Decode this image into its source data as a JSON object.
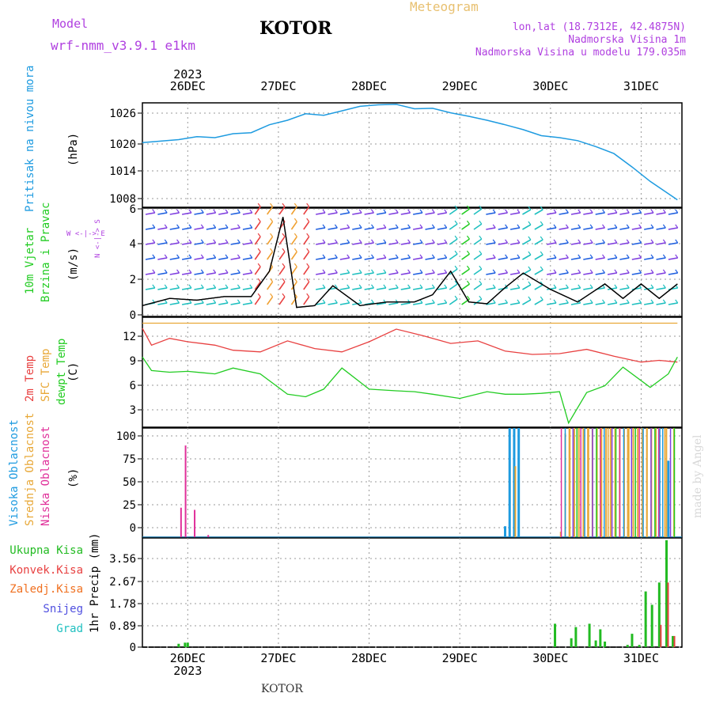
{
  "header": {
    "model_label": "Model",
    "model_name": "wrf-nmm_v3.9.1  e1km",
    "station": "KOTOR",
    "meteogram": "Meteogram",
    "lonlat": "lon,lat (18.7312E, 42.4875N)",
    "elevation": "Nadmorska Visina 1m",
    "model_elevation": "Nadmorska Visina u modelu 179.035m",
    "footer_station": "KOTOR",
    "credit": "made by Angel"
  },
  "colors": {
    "pressure": "#1e9be0",
    "temp2m": "#e84040",
    "sfc_temp": "#e8a838",
    "dewpt": "#22cc22",
    "high_cloud": "#1e9be0",
    "mid_cloud": "#e8a838",
    "low_cloud": "#e0309a",
    "total_precip": "#22bb22",
    "conv_precip": "#e84040",
    "frz_precip": "#f07020",
    "snow": "#5050e0",
    "graupel": "#20c0c0",
    "wind_label": "#22cc22",
    "wind_dir": "#b040e0"
  },
  "chart_data": [
    {
      "type": "line",
      "id": "pressure",
      "ylabel": "Pritisak na nivou mora",
      "unit": "(hPa)",
      "yticks": [
        "1026",
        "1020",
        "1014",
        "1008"
      ],
      "ylim": [
        1007,
        1028
      ],
      "x_top_year": "2023",
      "xtick_labels": [
        "26DEC",
        "27DEC",
        "28DEC",
        "29DEC",
        "30DEC",
        "31DEC"
      ],
      "x": [
        0,
        0.2,
        0.4,
        0.6,
        0.8,
        1.0,
        1.2,
        1.4,
        1.6,
        1.8,
        2.0,
        2.2,
        2.4,
        2.6,
        2.8,
        3.0,
        3.2,
        3.4,
        3.6,
        3.8,
        4.0,
        4.2,
        4.4,
        4.6,
        4.8,
        5.0,
        5.2,
        5.4,
        5.6,
        5.9
      ],
      "values": [
        1020,
        1020.3,
        1020.6,
        1021.2,
        1021,
        1021.8,
        1022,
        1023.6,
        1024.5,
        1025.8,
        1025.5,
        1026.4,
        1027.3,
        1027.6,
        1027.7,
        1026.8,
        1026.9,
        1026,
        1025.3,
        1024.5,
        1023.6,
        1022.6,
        1021.4,
        1021,
        1020.4,
        1019.2,
        1017.8,
        1015.1,
        1012.2,
        1008.5
      ]
    },
    {
      "type": "scatter",
      "id": "wind",
      "ylabel": "10m Vjetar Brzina i Pravac",
      "unit": "(m/s)",
      "compass": "W  <-|-> E",
      "compass_v": "N <-|-> S",
      "yticks": [
        "6",
        "4",
        "2",
        "0"
      ],
      "ylim": [
        0,
        6
      ],
      "x": [
        0,
        0.3,
        0.6,
        0.9,
        1.2,
        1.4,
        1.55,
        1.7,
        1.9,
        2.1,
        2.4,
        2.7,
        3.0,
        3.2,
        3.4,
        3.6,
        3.8,
        4.0,
        4.2,
        4.5,
        4.8,
        5.1,
        5.3,
        5.5,
        5.7,
        5.9
      ],
      "speed": [
        0.6,
        1.0,
        0.9,
        1.1,
        1.1,
        2.5,
        5.5,
        0.5,
        0.6,
        1.7,
        0.6,
        0.8,
        0.8,
        1.2,
        2.5,
        0.8,
        0.7,
        1.6,
        2.4,
        1.5,
        0.8,
        1.8,
        1.0,
        1.8,
        1.0,
        1.8
      ]
    },
    {
      "type": "line",
      "id": "temperature",
      "ylabel": [
        "2m Temp",
        "SFC Temp",
        "dewpt Temp"
      ],
      "unit": "(C)",
      "yticks": [
        "12",
        "9",
        "6",
        "3"
      ],
      "ylim": [
        1.3,
        14.3
      ],
      "series": [
        {
          "name": "2m Temp",
          "x": [
            0,
            0.1,
            0.3,
            0.5,
            0.8,
            1.0,
            1.3,
            1.6,
            1.9,
            2.2,
            2.5,
            2.8,
            3.1,
            3.4,
            3.7,
            4.0,
            4.3,
            4.6,
            4.9,
            5.2,
            5.5,
            5.7,
            5.9
          ],
          "values": [
            13,
            11,
            11.8,
            11.4,
            11,
            10.4,
            10.2,
            11.5,
            10.6,
            10.2,
            11.4,
            12.9,
            12.1,
            11.2,
            11.5,
            10.3,
            9.9,
            10,
            10.5,
            9.7,
            9,
            9.2,
            9
          ]
        },
        {
          "name": "SFC Temp",
          "x": [
            0,
            5.9
          ],
          "values": [
            13.6,
            13.6
          ]
        },
        {
          "name": "dewpt Temp",
          "x": [
            0,
            0.1,
            0.3,
            0.5,
            0.8,
            1.0,
            1.3,
            1.6,
            1.8,
            2.0,
            2.2,
            2.5,
            2.8,
            3.0,
            3.2,
            3.5,
            3.8,
            4.0,
            4.2,
            4.4,
            4.5,
            4.6,
            4.7,
            4.9,
            5.1,
            5.3,
            5.6,
            5.8,
            5.9
          ],
          "values": [
            9.6,
            8,
            7.8,
            7.9,
            7.6,
            8.3,
            7.6,
            5.2,
            4.9,
            5.8,
            8.3,
            5.8,
            5.6,
            5.5,
            5.2,
            4.7,
            5.5,
            5.2,
            5.2,
            5.3,
            5.4,
            5.5,
            1.8,
            5.4,
            6.2,
            8.4,
            6.0,
            7.6,
            9.6
          ]
        }
      ]
    },
    {
      "type": "bar",
      "id": "clouds",
      "ylabel": [
        "Visoka Oblacnost",
        "Srednja Oblacnost",
        "Niska Oblacnost"
      ],
      "unit": "(%)",
      "yticks": [
        "100",
        "75",
        "50",
        "25",
        "0"
      ],
      "ylim": [
        0,
        100
      ],
      "series": [
        {
          "name": "Visoka Oblacnost",
          "x": [
            4.0,
            4.05,
            4.1,
            4.15,
            5.7,
            5.8
          ],
          "values": [
            10,
            100,
            100,
            100,
            100,
            70
          ]
        },
        {
          "name": "Srednja Oblacnost",
          "x": [
            4.1,
            4.6,
            4.65,
            4.7,
            4.75,
            4.8,
            4.85,
            4.9,
            4.95,
            5.0,
            5.05,
            5.1,
            5.15,
            5.2,
            5.25,
            5.3,
            5.35,
            5.4,
            5.45,
            5.5,
            5.55,
            5.6,
            5.65,
            5.75,
            5.85
          ],
          "values": [
            65,
            5,
            95,
            100,
            100,
            100,
            100,
            100,
            100,
            100,
            100,
            100,
            100,
            100,
            100,
            100,
            100,
            100,
            100,
            100,
            100,
            100,
            100,
            100,
            100
          ]
        },
        {
          "name": "Niska Oblacnost",
          "x": [
            0.4,
            0.45,
            0.55,
            0.7
          ],
          "values": [
            27,
            84,
            25,
            2
          ]
        }
      ]
    },
    {
      "type": "bar",
      "id": "precip",
      "legend": [
        "Ukupna  Kisa",
        "Konvek.Kisa",
        "Zaledj.Kisa",
        "Snijeg",
        "Grad"
      ],
      "ylabel": "1hr Precip (mm)",
      "yticks": [
        "3.56",
        "2.67",
        "1.78",
        "0.89",
        "0"
      ],
      "ylim": [
        0,
        4.9
      ],
      "x_bottom_year": "2023",
      "xtick_labels": [
        "26DEC",
        "27DEC",
        "28DEC",
        "29DEC",
        "30DEC",
        "31DEC"
      ],
      "series": [
        {
          "name": "Ukupna  Kisa",
          "x": [
            0.4,
            0.47,
            0.5,
            4.55,
            4.73,
            4.78,
            4.93,
            5.0,
            5.05,
            5.1,
            5.35,
            5.4,
            5.48,
            5.55,
            5.62,
            5.7,
            5.78,
            5.85
          ],
          "values": [
            0.15,
            0.2,
            0.2,
            1.05,
            0.4,
            0.9,
            1.05,
            0.3,
            0.8,
            0.25,
            0.1,
            0.6,
            0.1,
            2.5,
            1.9,
            2.9,
            4.8,
            0.5
          ]
        }
      ]
    }
  ]
}
